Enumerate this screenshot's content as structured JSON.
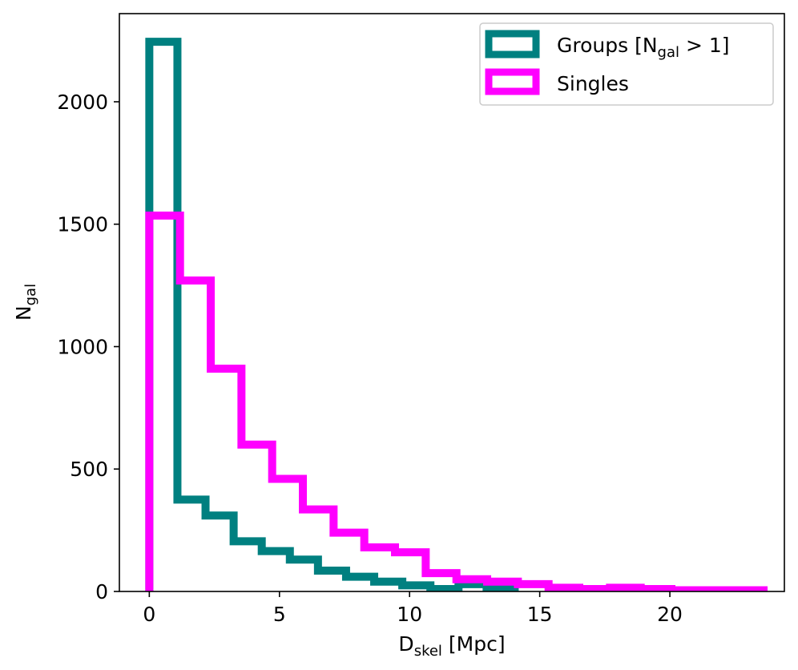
{
  "chart_data": {
    "type": "histogram-step",
    "xlabel": {
      "main": "D",
      "sub": "skel",
      "rest": " [Mpc]"
    },
    "ylabel": {
      "main": "N",
      "sub": "gal"
    },
    "xlim": [
      -1.15,
      24.4
    ],
    "ylim": [
      0,
      2360
    ],
    "xticks": [
      0,
      5,
      10,
      15,
      20
    ],
    "yticks": [
      0,
      500,
      1000,
      1500,
      2000
    ],
    "grid": false,
    "legend_position": "top-right",
    "series": [
      {
        "name": "Groups [N_gal > 1]",
        "legend_label": {
          "main": "Groups [N",
          "sub": "gal",
          "rest": " > 1]"
        },
        "color": "#008080",
        "bin_edges": [
          0,
          1.08,
          2.16,
          3.24,
          4.32,
          5.4,
          6.48,
          7.56,
          8.64,
          9.72,
          10.8,
          11.88,
          12.96,
          14.04
        ],
        "values": [
          2245,
          375,
          310,
          205,
          165,
          130,
          85,
          60,
          40,
          25,
          10,
          30,
          15
        ]
      },
      {
        "name": "Singles",
        "legend_label": {
          "main": "Singles",
          "sub": "",
          "rest": ""
        },
        "color": "#ff00ff",
        "bin_edges": [
          0,
          1.18,
          2.36,
          3.54,
          4.72,
          5.9,
          7.08,
          8.26,
          9.44,
          10.62,
          11.8,
          12.98,
          14.16,
          15.34,
          16.52,
          17.7,
          18.88,
          20.06,
          21.24,
          22.42,
          23.6
        ],
        "values": [
          1535,
          1270,
          910,
          600,
          460,
          335,
          240,
          180,
          160,
          75,
          50,
          40,
          30,
          15,
          10,
          15,
          10,
          5,
          5,
          5
        ]
      }
    ]
  }
}
